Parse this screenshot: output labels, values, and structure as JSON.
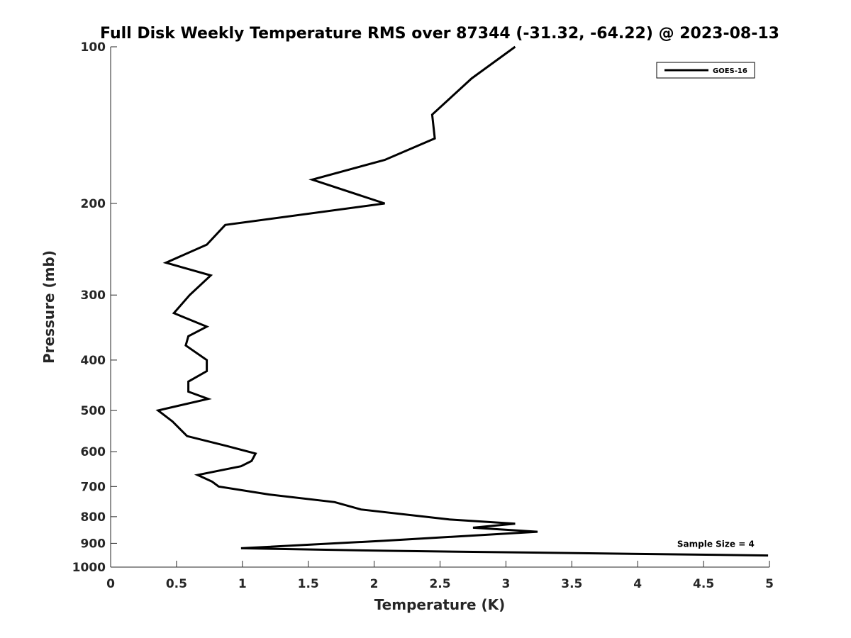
{
  "chart_data": {
    "type": "line",
    "title": "Full Disk Weekly Temperature RMS over 87344 (-31.32, -64.22) @ 2023-08-13",
    "xlabel": "Temperature (K)",
    "ylabel": "Pressure (mb)",
    "xlim": [
      0,
      5
    ],
    "ylim": [
      100,
      1000
    ],
    "yscale": "log",
    "y_reversed": true,
    "x_ticks": [
      "0",
      "0.5",
      "1",
      "1.5",
      "2",
      "2.5",
      "3",
      "3.5",
      "4",
      "4.5",
      "5"
    ],
    "x_tick_values": [
      0,
      0.5,
      1,
      1.5,
      2,
      2.5,
      3,
      3.5,
      4,
      4.5,
      5
    ],
    "y_ticks": [
      "100",
      "200",
      "300",
      "400",
      "500",
      "600",
      "700",
      "800",
      "900",
      "1000"
    ],
    "y_tick_values": [
      100,
      200,
      300,
      400,
      500,
      600,
      700,
      800,
      900,
      1000
    ],
    "grid": false,
    "legend_position": "top-right",
    "series": [
      {
        "name": "GOES-16",
        "color": "#000000",
        "points": [
          [
            3.07,
            100
          ],
          [
            2.74,
            115
          ],
          [
            2.44,
            135
          ],
          [
            2.46,
            150
          ],
          [
            2.08,
            165
          ],
          [
            1.53,
            180
          ],
          [
            2.08,
            200
          ],
          [
            0.87,
            220
          ],
          [
            0.73,
            240
          ],
          [
            0.42,
            260
          ],
          [
            0.76,
            275
          ],
          [
            0.6,
            300
          ],
          [
            0.48,
            325
          ],
          [
            0.73,
            345
          ],
          [
            0.59,
            360
          ],
          [
            0.57,
            375
          ],
          [
            0.73,
            400
          ],
          [
            0.73,
            420
          ],
          [
            0.59,
            440
          ],
          [
            0.59,
            460
          ],
          [
            0.74,
            475
          ],
          [
            0.36,
            500
          ],
          [
            0.47,
            525
          ],
          [
            0.58,
            560
          ],
          [
            0.88,
            585
          ],
          [
            1.1,
            605
          ],
          [
            1.07,
            625
          ],
          [
            0.99,
            640
          ],
          [
            0.66,
            665
          ],
          [
            0.77,
            685
          ],
          [
            0.82,
            700
          ],
          [
            1.2,
            725
          ],
          [
            1.7,
            750
          ],
          [
            1.9,
            775
          ],
          [
            2.57,
            810
          ],
          [
            3.07,
            825
          ],
          [
            2.75,
            840
          ],
          [
            3.24,
            855
          ],
          [
            2.07,
            890
          ],
          [
            0.99,
            920
          ],
          [
            2.07,
            930
          ],
          [
            4.99,
            950
          ]
        ]
      }
    ],
    "annotations": [
      {
        "text": "Sample Size = 4",
        "x": 4.3,
        "y": 900
      }
    ]
  }
}
